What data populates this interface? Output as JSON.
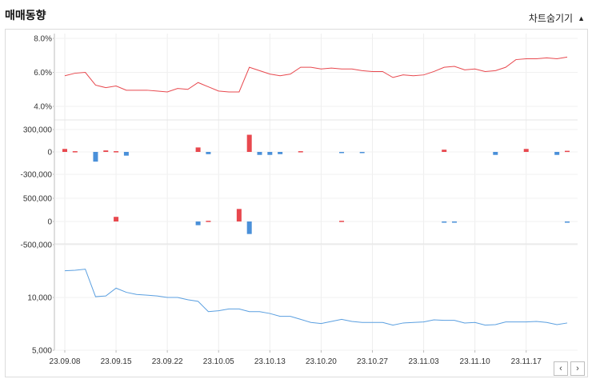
{
  "header": {
    "title": "매매동향",
    "toggle_label": "차트숨기기"
  },
  "nav": {
    "prev": "‹",
    "next": "›"
  },
  "colors": {
    "price": "#e8484e",
    "up": "#e8484e",
    "down": "#4a90d9",
    "holding": "#5a9fe0"
  },
  "chart_data": [
    {
      "type": "line",
      "name": "price",
      "yticks": [
        "8.0%",
        "6.0%",
        "4.0%"
      ],
      "ylim": [
        4.0,
        8.0
      ],
      "values": [
        5.8,
        5.95,
        6.0,
        5.25,
        5.1,
        5.2,
        4.95,
        4.95,
        4.95,
        4.9,
        4.85,
        5.05,
        5.0,
        5.4,
        5.15,
        4.9,
        4.85,
        4.85,
        6.3,
        6.1,
        5.9,
        5.8,
        5.9,
        6.3,
        6.3,
        6.2,
        6.25,
        6.2,
        6.2,
        6.1,
        6.05,
        6.05,
        5.7,
        5.85,
        5.8,
        5.85,
        6.05,
        6.3,
        6.35,
        6.15,
        6.2,
        6.05,
        6.1,
        6.3,
        6.75,
        6.8,
        6.8,
        6.85,
        6.8,
        6.9
      ]
    },
    {
      "type": "bar",
      "name": "volume1",
      "yticks": [
        "300,000",
        "0",
        "-300,000"
      ],
      "ylim": [
        -300000,
        300000
      ],
      "values": [
        40000,
        10000,
        0,
        -130000,
        20000,
        10000,
        -50000,
        0,
        0,
        0,
        0,
        0,
        0,
        60000,
        -30000,
        0,
        0,
        0,
        230000,
        -40000,
        -40000,
        -30000,
        0,
        10000,
        0,
        0,
        0,
        -10000,
        0,
        -10000,
        0,
        0,
        0,
        0,
        0,
        0,
        0,
        30000,
        0,
        0,
        0,
        0,
        -40000,
        0,
        0,
        40000,
        0,
        0,
        -40000,
        15000
      ]
    },
    {
      "type": "bar",
      "name": "volume2",
      "yticks": [
        "500,000",
        "0",
        "-500,000"
      ],
      "ylim": [
        -500000,
        500000
      ],
      "values": [
        0,
        0,
        0,
        0,
        0,
        100000,
        0,
        0,
        0,
        0,
        0,
        0,
        0,
        -80000,
        15000,
        0,
        0,
        270000,
        -270000,
        0,
        0,
        0,
        0,
        0,
        0,
        0,
        0,
        15000,
        0,
        0,
        0,
        0,
        0,
        0,
        0,
        0,
        0,
        -15000,
        -15000,
        0,
        0,
        0,
        0,
        0,
        0,
        0,
        0,
        0,
        0,
        -15000
      ]
    },
    {
      "type": "line",
      "name": "holding",
      "yticks": [
        "10,000",
        "5,000"
      ],
      "ylim": [
        5000,
        15000
      ],
      "log": true,
      "values": [
        14200,
        14300,
        14500,
        10100,
        10200,
        11300,
        10700,
        10400,
        10300,
        10200,
        10000,
        10000,
        9700,
        9500,
        8300,
        8400,
        8600,
        8600,
        8300,
        8300,
        8100,
        7800,
        7800,
        7500,
        7200,
        7100,
        7300,
        7500,
        7300,
        7200,
        7200,
        7200,
        6950,
        7150,
        7200,
        7250,
        7450,
        7400,
        7400,
        7150,
        7200,
        6950,
        7000,
        7250,
        7250,
        7250,
        7300,
        7200,
        7000,
        7150
      ]
    }
  ],
  "xticks": [
    "23.09.08",
    "23.09.15",
    "23.09.22",
    "23.10.05",
    "23.10.13",
    "23.10.20",
    "23.10.27",
    "23.11.03",
    "23.11.10",
    "23.11.17"
  ]
}
